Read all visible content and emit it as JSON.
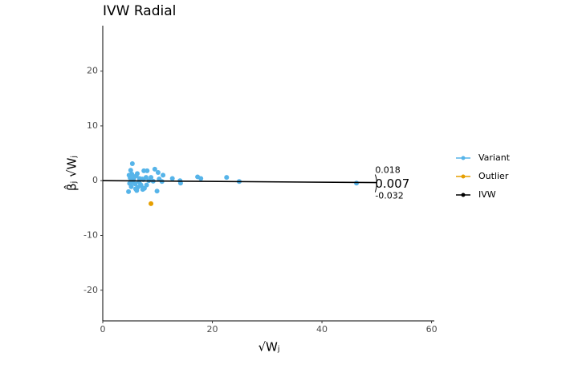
{
  "chart_data": {
    "type": "scatter",
    "title": "IVW Radial",
    "x_label": "√Wⱼ",
    "y_label": "β̂ⱼ √Wⱼ",
    "xlim": [
      0,
      60.5
    ],
    "ylim": [
      -25.6,
      28.3
    ],
    "xticks": [
      0,
      20,
      40,
      60
    ],
    "yticks": [
      -20,
      -10,
      0,
      10,
      20
    ],
    "series": [
      {
        "name": "Variant",
        "color": "#56b4e9",
        "kind": "points",
        "x": [
          5.4,
          5.1,
          9.5,
          10.1,
          11.0,
          7.5,
          8.1,
          12.7,
          17.3,
          17.9,
          22.6,
          24.9,
          46.3,
          14.1,
          14.2,
          9.9,
          4.7,
          6.2,
          7.3,
          10.8,
          8.8,
          8.4,
          4.8,
          5.0,
          5.3,
          5.6,
          5.9,
          6.1,
          6.4,
          6.7,
          7.0,
          7.2,
          7.6,
          7.9,
          4.9,
          5.2,
          5.5,
          5.8,
          6.0,
          6.3,
          6.6,
          6.9,
          7.4,
          8.0,
          9.2,
          10.3
        ],
        "values": [
          3.1,
          1.9,
          2.1,
          1.5,
          1.0,
          1.8,
          1.8,
          0.4,
          0.7,
          0.4,
          0.6,
          -0.15,
          -0.45,
          0,
          -0.45,
          -1.9,
          -2.0,
          -1.8,
          -1.6,
          -0.15,
          0.6,
          0,
          1.0,
          0.5,
          1.2,
          0.2,
          -0.6,
          0.9,
          -1.2,
          0.4,
          -0.9,
          0.3,
          -1.4,
          0.6,
          -0.5,
          -1.1,
          -0.3,
          0.7,
          -1.5,
          1.3,
          -0.2,
          -0.7,
          0.2,
          -0.8,
          -0.1,
          0.3
        ]
      },
      {
        "name": "Outlier",
        "color": "#e69f00",
        "kind": "points",
        "x": [
          8.8
        ],
        "values": [
          -4.2
        ]
      },
      {
        "name": "IVW",
        "color": "#000000",
        "kind": "line",
        "x": [
          0,
          50
        ],
        "values": [
          0,
          -0.35
        ]
      }
    ],
    "annotations": [
      "0.018",
      "0.007",
      "-0.032"
    ]
  }
}
